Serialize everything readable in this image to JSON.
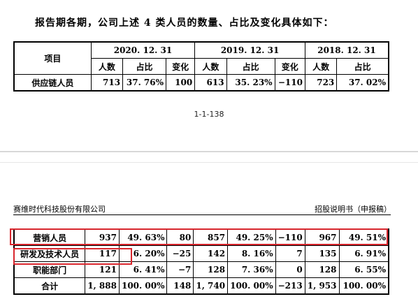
{
  "intro_text": "报告期各期，公司上述 4 类人员的数量、占比及变化具体如下：",
  "page_number": "1-1-138",
  "header_left": "赛维时代科技股份有限公司",
  "header_right": "招股说明书（申报稿）",
  "table": {
    "item_label": "项目",
    "periods": [
      "2020. 12. 31",
      "2019. 12. 31",
      "2018. 12. 31"
    ],
    "sub_headers": [
      "人数",
      "占比",
      "变化",
      "人数",
      "占比",
      "变化",
      "人数",
      "占比"
    ],
    "rows_top": [
      {
        "name": "供应链人员",
        "cells": [
          "713",
          "37. 76%",
          "100",
          "613",
          "35. 23%",
          "−110",
          "723",
          "37. 02%"
        ]
      }
    ],
    "rows_bottom": [
      {
        "name": "营销人员",
        "cells": [
          "937",
          "49. 63%",
          "80",
          "857",
          "49. 25%",
          "−110",
          "967",
          "49. 51%"
        ]
      },
      {
        "name": "研发及技术人员",
        "cells": [
          "117",
          "6. 20%",
          "−25",
          "142",
          "8. 16%",
          "7",
          "135",
          "6. 91%"
        ]
      },
      {
        "name": "职能部门",
        "cells": [
          "121",
          "6. 41%",
          "−7",
          "128",
          "7. 36%",
          "0",
          "128",
          "6. 55%"
        ]
      },
      {
        "name": "合计",
        "cells": [
          "1, 888",
          "100. 00%",
          "148",
          "1, 740",
          "100. 00%",
          "−213",
          "1, 953",
          "100. 00%"
        ]
      }
    ]
  },
  "highlight_color": "#d8262d"
}
